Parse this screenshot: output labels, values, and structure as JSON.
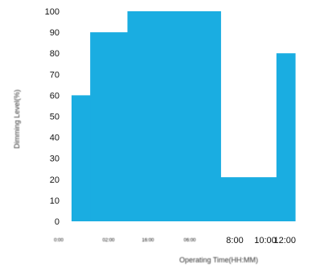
{
  "chart_data": {
    "type": "area",
    "step": true,
    "title": "",
    "xlabel": "Operating Time(HH:MM)",
    "ylabel": "Dimming Level(%)",
    "ylim": [
      0,
      100
    ],
    "yticks": [
      0,
      10,
      20,
      30,
      40,
      50,
      60,
      70,
      80,
      90,
      100
    ],
    "xticks_small": [
      "0:00",
      "02:00",
      "16:00",
      "06:00"
    ],
    "xticks_large": [
      "8:00",
      "10:00",
      "12:00"
    ],
    "fill_color": "#1AADE1",
    "grid": false,
    "legend": "none",
    "steps": [
      {
        "from": "0:00",
        "to": "01:00",
        "level": 60
      },
      {
        "from": "01:00",
        "to": "03:00",
        "level": 90
      },
      {
        "from": "03:00",
        "to": "08:00",
        "level": 100
      },
      {
        "from": "08:00",
        "to": "11:00",
        "level": 21
      },
      {
        "from": "11:00",
        "to": "12:00",
        "level": 80
      }
    ]
  }
}
